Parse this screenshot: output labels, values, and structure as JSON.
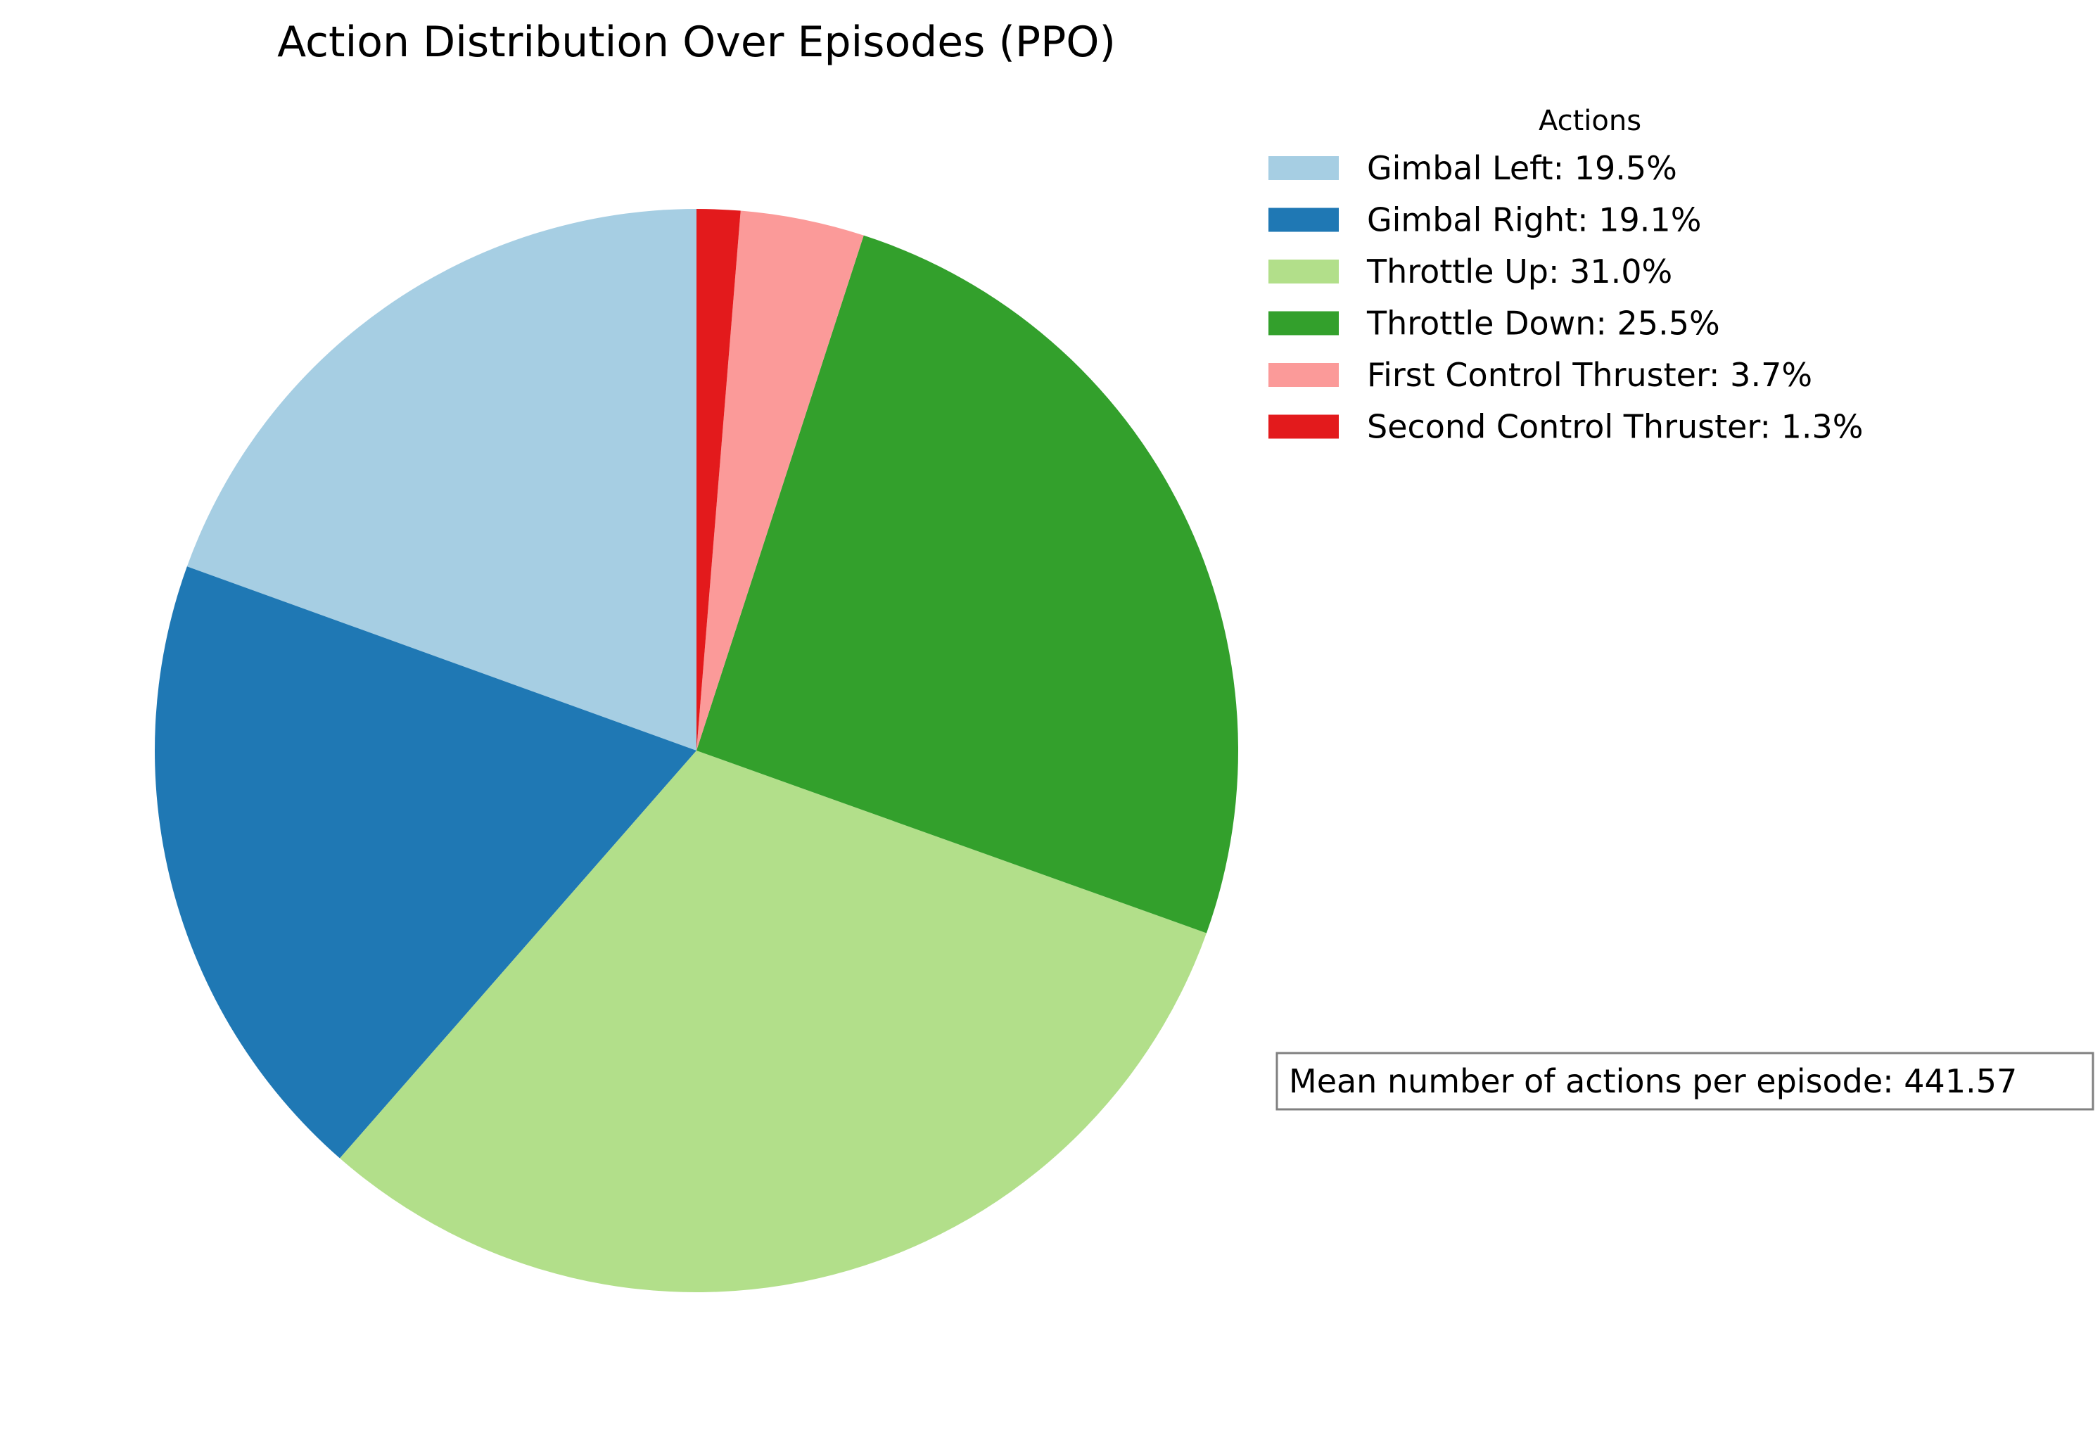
{
  "chart_data": {
    "type": "pie",
    "title": "Action Distribution Over Episodes (PPO)",
    "legend_title": "Actions",
    "legend_placement": "top-right",
    "start_angle_deg": 90,
    "direction": "counterclockwise",
    "slices": [
      {
        "name": "Gimbal Left",
        "value": 19.5,
        "label": "Gimbal Left: 19.5%",
        "color": "#a6cee3"
      },
      {
        "name": "Gimbal Right",
        "value": 19.1,
        "label": "Gimbal Right: 19.1%",
        "color": "#1f78b4"
      },
      {
        "name": "Throttle Up",
        "value": 31.0,
        "label": "Throttle Up: 31.0%",
        "color": "#b2df8a"
      },
      {
        "name": "Throttle Down",
        "value": 25.5,
        "label": "Throttle Down: 25.5%",
        "color": "#33a02c"
      },
      {
        "name": "First Control Thruster",
        "value": 3.7,
        "label": "First Control Thruster: 3.7%",
        "color": "#fb9a99"
      },
      {
        "name": "Second Control Thruster",
        "value": 1.3,
        "label": "Second Control Thruster: 1.3%",
        "color": "#e31a1c"
      }
    ],
    "annotation": "Mean number of actions per episode: 441.57"
  }
}
